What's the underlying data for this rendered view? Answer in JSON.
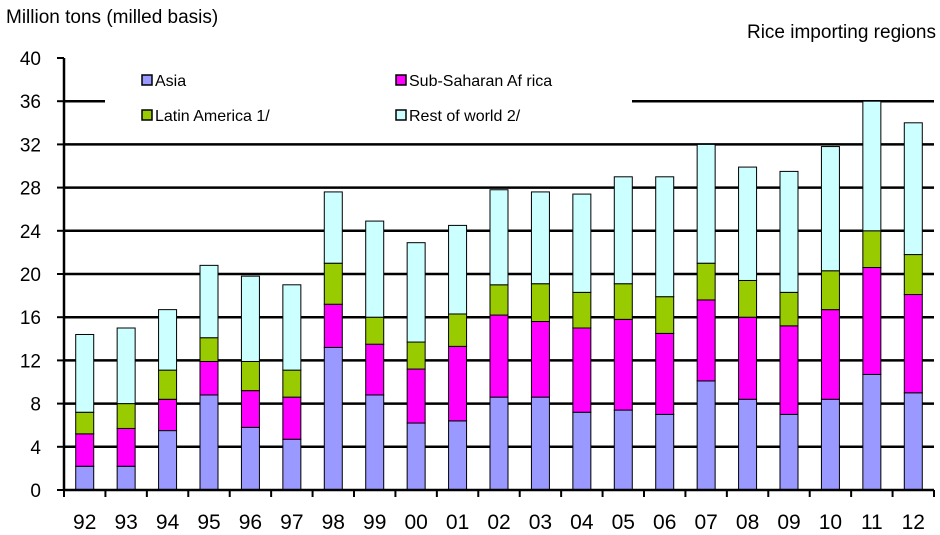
{
  "chart_data": {
    "type": "bar",
    "stacked": true,
    "ylabel": "Million tons (milled basis)",
    "corner_label": "Rice importing regions",
    "ylim": [
      0,
      40
    ],
    "yticks": [
      "0",
      "4",
      "8",
      "12",
      "16",
      "20",
      "24",
      "28",
      "32",
      "36",
      "40"
    ],
    "gridlines": [
      36,
      32,
      28,
      24,
      20,
      16,
      12,
      8,
      4
    ],
    "categories": [
      "92",
      "93",
      "94",
      "95",
      "96",
      "97",
      "98",
      "99",
      "00",
      "01",
      "02",
      "03",
      "04",
      "05",
      "06",
      "07",
      "08",
      "09",
      "10",
      "11",
      "12"
    ],
    "series": [
      {
        "name": "Asia",
        "color": "#9999ff",
        "values": [
          2.2,
          2.2,
          5.5,
          8.8,
          5.8,
          4.7,
          13.2,
          8.8,
          6.2,
          6.4,
          8.6,
          8.6,
          7.2,
          7.4,
          7.0,
          10.1,
          8.4,
          7.0,
          8.4,
          10.7,
          9.0
        ]
      },
      {
        "name": "Sub-Saharan Af rica",
        "color": "#ff00ff",
        "values": [
          3.0,
          3.5,
          2.9,
          3.1,
          3.4,
          3.9,
          4.0,
          4.7,
          5.0,
          6.9,
          7.6,
          7.0,
          7.8,
          8.4,
          7.5,
          7.5,
          7.6,
          8.2,
          8.3,
          9.9,
          9.1
        ]
      },
      {
        "name": "Latin America 1/",
        "color": "#99cc00",
        "values": [
          2.0,
          2.3,
          2.7,
          2.2,
          2.7,
          2.5,
          3.8,
          2.5,
          2.5,
          3.0,
          2.8,
          3.5,
          3.3,
          3.3,
          3.4,
          3.4,
          3.4,
          3.1,
          3.6,
          3.4,
          3.7
        ]
      },
      {
        "name": "Rest of world 2/",
        "color": "#ccffff",
        "values": [
          7.2,
          7.0,
          5.6,
          6.7,
          7.9,
          7.9,
          6.6,
          8.9,
          9.2,
          8.2,
          8.8,
          8.5,
          9.1,
          9.9,
          11.1,
          11.0,
          10.5,
          11.2,
          11.5,
          12.0,
          12.2
        ]
      }
    ],
    "legend_placement": "top-left, inside plot area, two columns"
  }
}
